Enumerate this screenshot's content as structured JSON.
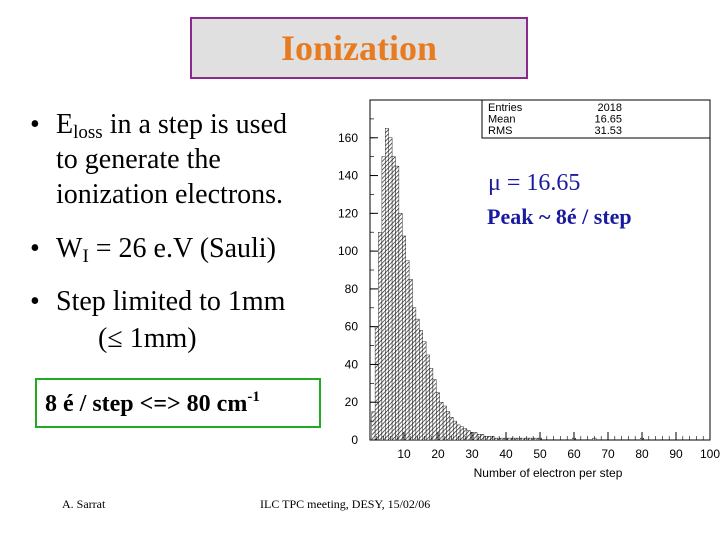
{
  "slide": {
    "title": "Ionization",
    "bullets": [
      {
        "dot": "•",
        "main": "E",
        "sub": "loss",
        "rest": " in a step is used"
      },
      {
        "line": "to generate the"
      },
      {
        "line": "ionization electrons."
      },
      {
        "dot": "•",
        "main": "W",
        "sub": "I",
        "rest": " = 26 e.V (Sauli)"
      },
      {
        "dot": "•",
        "text": "Step limited to 1mm"
      },
      {
        "line": "(≤ 1mm)"
      }
    ],
    "boxed_text": "8 é / step  <=>  80 cm",
    "boxed_sup": "-1",
    "annotation_mu": "μ = 16.65",
    "annotation_peak": "Peak ~ 8é / step",
    "footer_left": "A. Sarrat",
    "footer_center": "ILC TPC meeting, DESY, 15/02/06"
  },
  "chart_data": {
    "type": "bar",
    "title": "",
    "xlabel": "Number of electron per step",
    "ylabel": "",
    "xlim": [
      0,
      100
    ],
    "ylim": [
      0,
      180
    ],
    "xticks": [
      10,
      20,
      30,
      40,
      50,
      60,
      70,
      80,
      90,
      100
    ],
    "yticks": [
      0,
      20,
      40,
      60,
      80,
      100,
      120,
      140,
      160
    ],
    "stats": [
      {
        "label": "Entries",
        "value": "2018"
      },
      {
        "label": "Mean",
        "value": "16.65"
      },
      {
        "label": "RMS",
        "value": "31.53"
      }
    ],
    "bin_width": 1,
    "x": [
      1,
      2,
      3,
      4,
      5,
      6,
      7,
      8,
      9,
      10,
      11,
      12,
      13,
      14,
      15,
      16,
      17,
      18,
      19,
      20,
      21,
      22,
      23,
      24,
      25,
      26,
      27,
      28,
      29,
      30,
      31,
      32,
      33,
      34,
      35,
      36,
      37,
      38,
      39,
      40,
      41,
      42,
      43,
      44,
      45,
      46,
      47,
      48,
      49,
      50,
      60,
      66,
      80
    ],
    "values": [
      15,
      60,
      110,
      150,
      165,
      160,
      150,
      145,
      120,
      108,
      95,
      85,
      70,
      64,
      58,
      52,
      45,
      38,
      32,
      25,
      20,
      18,
      15,
      12,
      10,
      8,
      7,
      6,
      5,
      4,
      4,
      3,
      3,
      2,
      2,
      2,
      1,
      1,
      1,
      1,
      1,
      1,
      1,
      1,
      1,
      1,
      1,
      1,
      1,
      1,
      1,
      1,
      1
    ]
  }
}
